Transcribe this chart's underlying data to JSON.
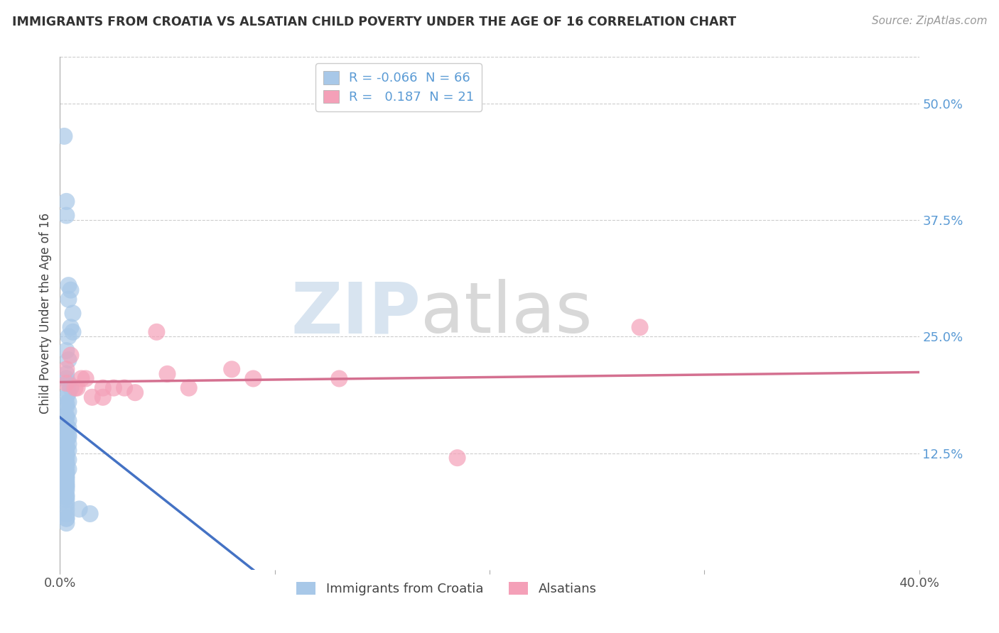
{
  "title": "IMMIGRANTS FROM CROATIA VS ALSATIAN CHILD POVERTY UNDER THE AGE OF 16 CORRELATION CHART",
  "source": "Source: ZipAtlas.com",
  "ylabel": "Child Poverty Under the Age of 16",
  "xlim": [
    0.0,
    0.4
  ],
  "ylim": [
    0.0,
    0.55
  ],
  "yticks": [
    0.125,
    0.25,
    0.375,
    0.5
  ],
  "ytick_labels": [
    "12.5%",
    "25.0%",
    "37.5%",
    "50.0%"
  ],
  "xticks": [
    0.0,
    0.1,
    0.2,
    0.3,
    0.4
  ],
  "xtick_labels": [
    "0.0%",
    "",
    "",
    "",
    "40.0%"
  ],
  "legend_entry1": "R = -0.066  N = 66",
  "legend_entry2": "R =   0.187  N = 21",
  "legend_label1": "Immigrants from Croatia",
  "legend_label2": "Alsatians",
  "color_blue": "#a8c8e8",
  "color_pink": "#f4a0b8",
  "line_blue": "#4472c4",
  "line_pink": "#d47090",
  "line_dash": "#90b8d8",
  "tick_color": "#5b9bd5",
  "background": "#ffffff",
  "blue_x": [
    0.002,
    0.003,
    0.003,
    0.004,
    0.005,
    0.004,
    0.006,
    0.005,
    0.006,
    0.004,
    0.003,
    0.004,
    0.003,
    0.003,
    0.004,
    0.005,
    0.004,
    0.003,
    0.004,
    0.003,
    0.003,
    0.004,
    0.003,
    0.003,
    0.004,
    0.003,
    0.004,
    0.003,
    0.003,
    0.004,
    0.003,
    0.004,
    0.003,
    0.003,
    0.004,
    0.003,
    0.003,
    0.004,
    0.003,
    0.003,
    0.003,
    0.004,
    0.003,
    0.003,
    0.003,
    0.004,
    0.003,
    0.003,
    0.003,
    0.003,
    0.003,
    0.003,
    0.003,
    0.003,
    0.003,
    0.003,
    0.003,
    0.003,
    0.003,
    0.003,
    0.003,
    0.003,
    0.014,
    0.009,
    0.003,
    0.003
  ],
  "blue_y": [
    0.465,
    0.395,
    0.38,
    0.305,
    0.3,
    0.29,
    0.275,
    0.26,
    0.255,
    0.25,
    0.235,
    0.225,
    0.21,
    0.205,
    0.2,
    0.195,
    0.19,
    0.185,
    0.18,
    0.178,
    0.175,
    0.17,
    0.165,
    0.163,
    0.16,
    0.155,
    0.152,
    0.15,
    0.148,
    0.145,
    0.143,
    0.142,
    0.14,
    0.138,
    0.135,
    0.133,
    0.13,
    0.128,
    0.125,
    0.123,
    0.12,
    0.118,
    0.115,
    0.113,
    0.11,
    0.108,
    0.105,
    0.103,
    0.1,
    0.098,
    0.095,
    0.092,
    0.09,
    0.088,
    0.085,
    0.08,
    0.078,
    0.075,
    0.07,
    0.065,
    0.06,
    0.055,
    0.06,
    0.065,
    0.055,
    0.05
  ],
  "pink_x": [
    0.003,
    0.005,
    0.01,
    0.02,
    0.045,
    0.08,
    0.185,
    0.27,
    0.003,
    0.008,
    0.015,
    0.025,
    0.05,
    0.09,
    0.02,
    0.03,
    0.012,
    0.035,
    0.06,
    0.13,
    0.007
  ],
  "pink_y": [
    0.215,
    0.23,
    0.205,
    0.195,
    0.255,
    0.215,
    0.12,
    0.26,
    0.2,
    0.195,
    0.185,
    0.195,
    0.21,
    0.205,
    0.185,
    0.195,
    0.205,
    0.19,
    0.195,
    0.205,
    0.195
  ],
  "watermark_zip": "ZIP",
  "watermark_atlas": "atlas",
  "watermark_color_zip": "#d8e4f0",
  "watermark_color_atlas": "#d8d8d8"
}
